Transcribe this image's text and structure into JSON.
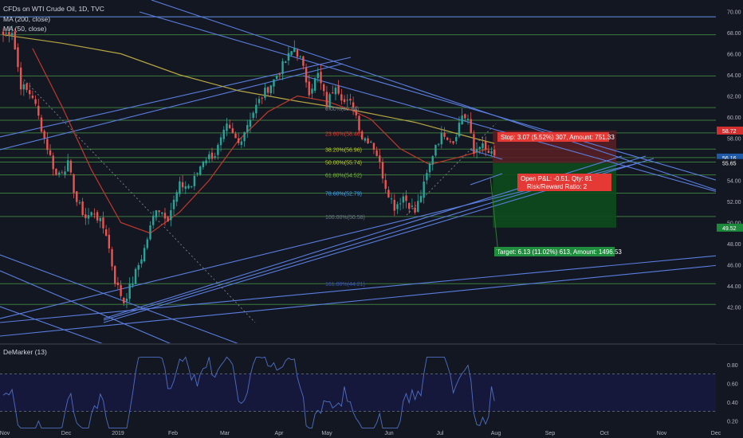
{
  "header": {
    "title": "CFDs on WTI Crude Oil, 1D, TVC",
    "indicators": [
      "MA (200, close)",
      "MA (50, close)"
    ],
    "oscillator": "DeMarker (13)"
  },
  "colors": {
    "background": "#131722",
    "up": "#26a69a",
    "down": "#ef5350",
    "trendline": "#5b7fe0",
    "hline": "#3d7a3d",
    "ma200": "#b5a642",
    "ma50": "#c0392b",
    "axis_text": "#b2b5be",
    "stop_zone": "#5a1f24",
    "target_zone": "#0d4a1c"
  },
  "chart_data": {
    "type": "candlestick",
    "title": "CFDs on WTI Crude Oil, 1D, TVC",
    "x_ticks": [
      "Nov",
      "Dec",
      "2019",
      "Feb",
      "Mar",
      "Apr",
      "May",
      "Jun",
      "Jul",
      "Aug",
      "Sep",
      "Oct",
      "Nov",
      "Dec"
    ],
    "y_ticks": [
      "70.00",
      "68.00",
      "66.00",
      "64.00",
      "62.00",
      "60.00",
      "58.00",
      "56.00",
      "54.00",
      "52.00",
      "50.00",
      "48.00",
      "46.00",
      "44.00",
      "42.00"
    ],
    "ylim": [
      41,
      72
    ],
    "price_labels": [
      {
        "text": "58.72",
        "color": "#d32f2f",
        "value": 58.72
      },
      {
        "text": "56.16",
        "color": "#1e5aa8",
        "value": 56.16
      },
      {
        "text": "55.65",
        "color": "#131722",
        "value": 55.65
      },
      {
        "text": "49.52",
        "color": "#1b8a3a",
        "value": 49.52
      }
    ],
    "fib_levels": [
      {
        "label": "0.00%(60.84)",
        "value": 60.84,
        "color": "#6f7786"
      },
      {
        "label": "23.60%(58.46)",
        "value": 58.46,
        "color": "#e53935"
      },
      {
        "label": "38.20%(56.96)",
        "value": 56.96,
        "color": "#c0ca33"
      },
      {
        "label": "50.00%(55.74)",
        "value": 55.74,
        "color": "#c0ca33"
      },
      {
        "label": "61.80%(54.52)",
        "value": 54.52,
        "color": "#7cb342"
      },
      {
        "label": "78.60%(52.79)",
        "value": 52.79,
        "color": "#42a5f5"
      },
      {
        "label": "100.00%(50.58)",
        "value": 50.58,
        "color": "#6f7786"
      },
      {
        "label": "161.80%(44.21)",
        "value": 44.21,
        "color": "#3f51b5"
      }
    ],
    "position": {
      "stop": "Stop: 3.07 (5.52%) 307, Amount: 751.33",
      "open": "Open P&L: -0.51, Qty: 81",
      "risk_reward": "Risk/Reward Ratio: 2",
      "target": "Target: 6.13 (11.02%) 613, Amount: 1496.53",
      "entry_price": 55.65,
      "stop_price": 58.72,
      "target_price": 49.52
    },
    "demarker": {
      "y_ticks": [
        "0.80",
        "0.60",
        "0.40",
        "0.20"
      ],
      "ylim": [
        0.1,
        0.9
      ],
      "upper": 0.7,
      "lower": 0.3
    },
    "candle_path": [
      [
        0,
        67.8
      ],
      [
        3,
        68.2
      ],
      [
        6,
        63
      ],
      [
        10,
        62
      ],
      [
        14,
        58
      ],
      [
        18,
        54.5
      ],
      [
        22,
        55.5
      ],
      [
        25,
        52
      ],
      [
        28,
        50.5
      ],
      [
        31,
        51
      ],
      [
        35,
        49
      ],
      [
        38,
        44.5
      ],
      [
        41,
        42.5
      ],
      [
        44,
        44.5
      ],
      [
        48,
        47.5
      ],
      [
        52,
        51.5
      ],
      [
        56,
        50.5
      ],
      [
        60,
        53.5
      ],
      [
        64,
        53.5
      ],
      [
        68,
        56
      ],
      [
        72,
        56.5
      ],
      [
        76,
        59
      ],
      [
        80,
        57.5
      ],
      [
        84,
        60
      ],
      [
        88,
        62
      ],
      [
        92,
        63.5
      ],
      [
        96,
        65.3
      ],
      [
        99,
        66.6
      ],
      [
        101,
        65.5
      ],
      [
        104,
        62.5
      ],
      [
        107,
        64
      ],
      [
        110,
        61.2
      ],
      [
        113,
        63.2
      ],
      [
        116,
        61.4
      ],
      [
        119,
        61.2
      ],
      [
        122,
        58.1
      ],
      [
        125,
        57.8
      ],
      [
        127,
        56.5
      ],
      [
        130,
        53.5
      ],
      [
        133,
        51.5
      ],
      [
        136,
        52.5
      ],
      [
        140,
        51
      ],
      [
        143,
        53.5
      ],
      [
        147,
        57.5
      ],
      [
        150,
        58.5
      ],
      [
        153,
        57.7
      ],
      [
        156,
        60.2
      ],
      [
        158,
        59.8
      ],
      [
        160,
        56.5
      ],
      [
        162,
        57.5
      ],
      [
        164,
        56.8
      ],
      [
        167,
        56.2
      ]
    ],
    "ma200_path": [
      [
        0,
        67.8
      ],
      [
        20,
        67
      ],
      [
        40,
        66
      ],
      [
        60,
        64
      ],
      [
        80,
        62.5
      ],
      [
        100,
        61.5
      ],
      [
        120,
        60.6
      ],
      [
        140,
        59.5
      ],
      [
        160,
        58
      ],
      [
        167,
        57.5
      ]
    ],
    "ma50_path": [
      [
        10,
        66.5
      ],
      [
        20,
        61
      ],
      [
        30,
        55
      ],
      [
        40,
        50
      ],
      [
        50,
        49
      ],
      [
        60,
        51
      ],
      [
        70,
        54
      ],
      [
        80,
        57.8
      ],
      [
        90,
        60.5
      ],
      [
        100,
        62
      ],
      [
        110,
        61.5
      ],
      [
        118,
        60.7
      ],
      [
        125,
        59.8
      ],
      [
        135,
        57
      ],
      [
        145,
        55.5
      ],
      [
        155,
        56.2
      ],
      [
        165,
        57
      ]
    ]
  }
}
